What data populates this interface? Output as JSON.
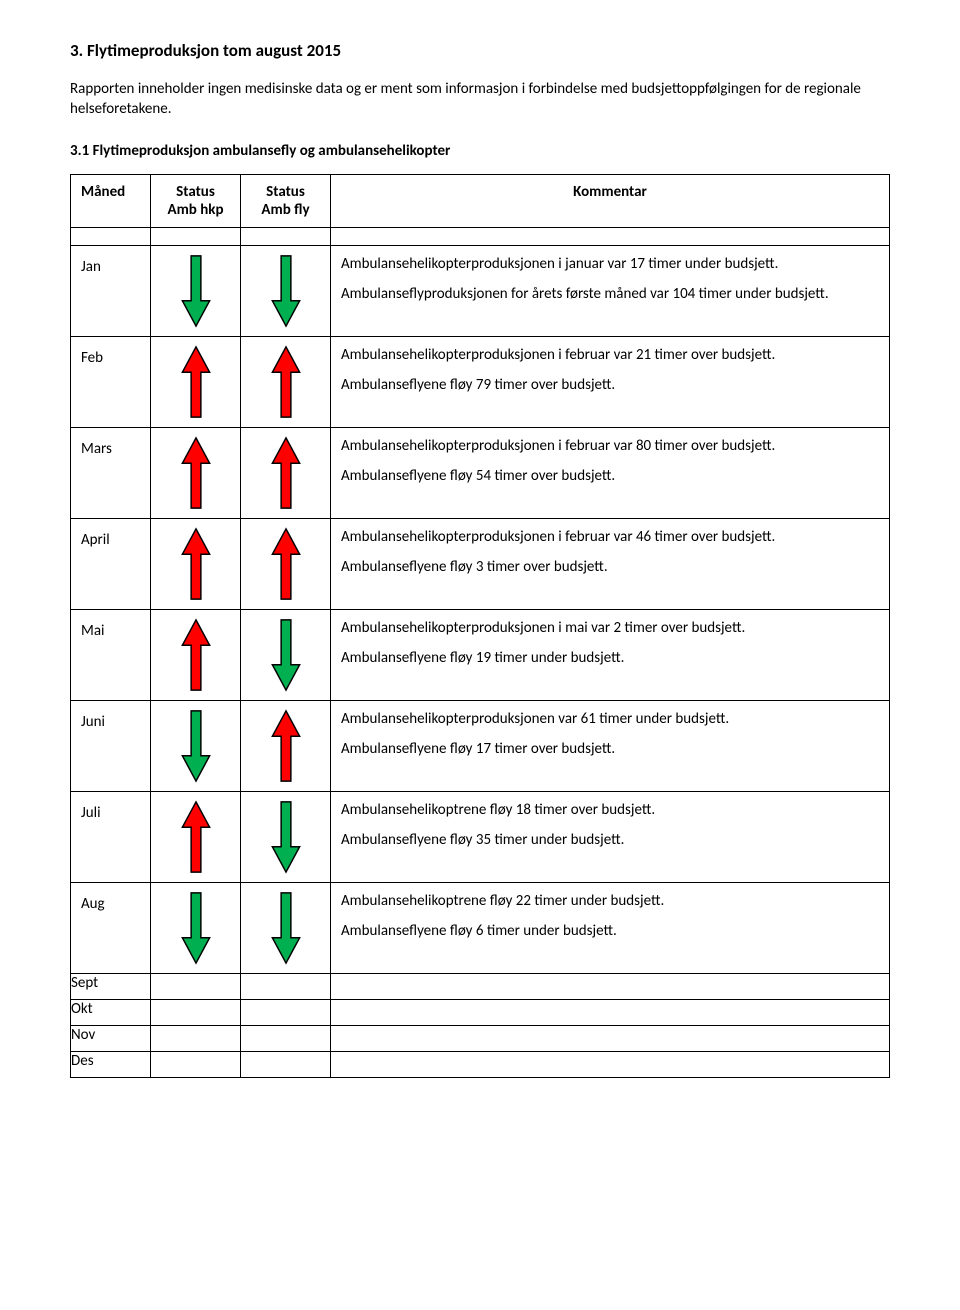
{
  "heading": "3.  Flytimeproduksjon tom august 2015",
  "intro": "Rapporten inneholder ingen medisinske data og er ment som informasjon i forbindelse med budsjettoppfølgingen for de regionale helseforetakene.",
  "subheading": "3.1 Flytimeproduksjon ambulansefly og ambulansehelikopter",
  "headers": {
    "month": "Måned",
    "status_hkp": "Status Amb hkp",
    "status_fly": "Status Amb fly",
    "kommentar": "Kommentar"
  },
  "colors": {
    "green_fill": "#00b050",
    "red_fill": "#ff0000",
    "stroke": "#000000"
  },
  "rows": [
    {
      "month": "Jan",
      "hkp": "down-green",
      "fly": "down-green",
      "paras": [
        "Ambulansehelikopterproduksjonen i januar var 17 timer under budsjett.",
        "Ambulanseflyproduksjonen for årets første måned var 104 timer under budsjett."
      ]
    },
    {
      "month": "Feb",
      "hkp": "up-red",
      "fly": "up-red",
      "paras": [
        "Ambulansehelikopterproduksjonen i februar var 21 timer over budsjett.",
        "Ambulanseflyene fløy 79 timer over budsjett."
      ]
    },
    {
      "month": "Mars",
      "hkp": "up-red",
      "fly": "up-red",
      "paras": [
        "Ambulansehelikopterproduksjonen i februar var 80 timer over budsjett.",
        "Ambulanseflyene fløy 54 timer over budsjett."
      ]
    },
    {
      "month": "April",
      "hkp": "up-red",
      "fly": "up-red",
      "paras": [
        "Ambulansehelikopterproduksjonen i februar var 46 timer over budsjett.",
        "Ambulanseflyene fløy 3 timer over budsjett."
      ]
    },
    {
      "month": "Mai",
      "hkp": "up-red",
      "fly": "down-green",
      "paras": [
        "Ambulansehelikopterproduksjonen i mai var 2 timer over budsjett.",
        "Ambulanseflyene fløy 19 timer under budsjett."
      ]
    },
    {
      "month": "Juni",
      "hkp": "down-green",
      "fly": "up-red",
      "paras": [
        "Ambulansehelikopterproduksjonen var 61 timer under budsjett.",
        "Ambulanseflyene fløy 17 timer over budsjett."
      ]
    },
    {
      "month": "Juli",
      "hkp": "up-red",
      "fly": "down-green",
      "paras": [
        "Ambulansehelikoptrene fløy 18 timer over budsjett.",
        "Ambulanseflyene fløy 35 timer under budsjett."
      ]
    },
    {
      "month": "Aug",
      "hkp": "down-green",
      "fly": "down-green",
      "paras": [
        "Ambulansehelikoptrene fløy 22 timer under budsjett.",
        "Ambulanseflyene fløy 6 timer under budsjett."
      ]
    },
    {
      "month": "Sept",
      "hkp": "",
      "fly": "",
      "paras": []
    },
    {
      "month": "Okt",
      "hkp": "",
      "fly": "",
      "paras": []
    },
    {
      "month": "Nov",
      "hkp": "",
      "fly": "",
      "paras": []
    },
    {
      "month": "Des",
      "hkp": "",
      "fly": "",
      "paras": []
    }
  ]
}
